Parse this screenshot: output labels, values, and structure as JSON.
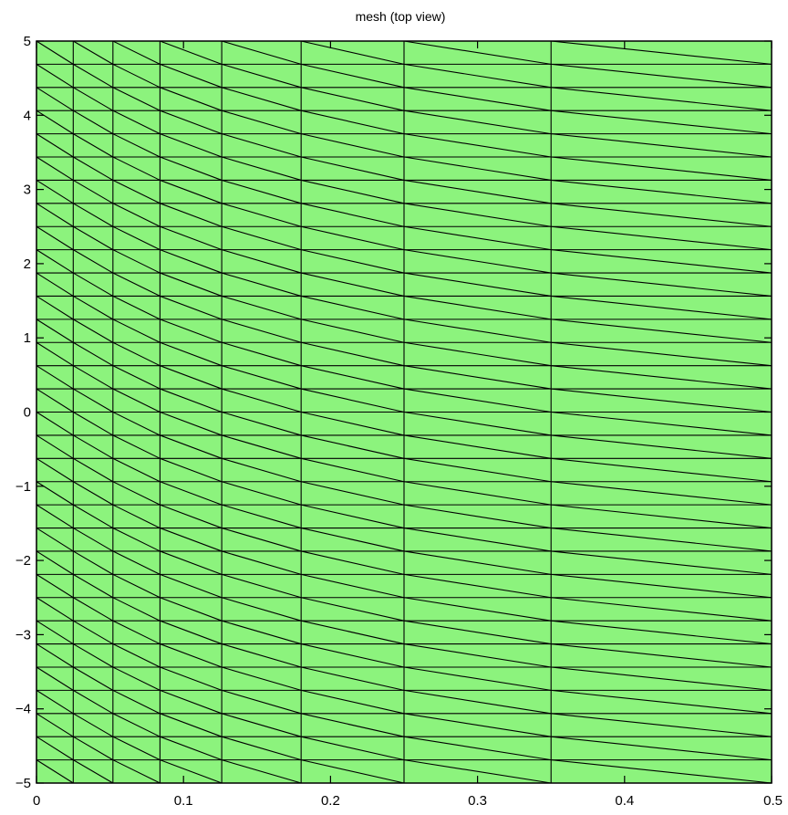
{
  "chart_data": {
    "type": "mesh",
    "title": "mesh (top view)",
    "xlabel": "",
    "ylabel": "",
    "xlim": [
      0,
      0.5
    ],
    "ylim": [
      -5,
      5
    ],
    "x_ticks": [
      0,
      0.1,
      0.2,
      0.3,
      0.4,
      0.5
    ],
    "x_tick_labels": [
      "0",
      "0.1",
      "0.2",
      "0.3",
      "0.4",
      "0.5"
    ],
    "y_ticks": [
      -5,
      -4,
      -3,
      -2,
      -1,
      0,
      1,
      2,
      3,
      4,
      5
    ],
    "y_tick_labels": [
      "−5",
      "−4",
      "−3",
      "−2",
      "−1",
      "0",
      "1",
      "2",
      "3",
      "4",
      "5"
    ],
    "mesh_x_nodes": [
      0,
      0.025,
      0.052,
      0.084,
      0.126,
      0.18,
      0.25,
      0.35,
      0.5
    ],
    "mesh_y_nodes": [
      -5,
      -4.688,
      -4.375,
      -4.063,
      -3.75,
      -3.438,
      -3.125,
      -2.813,
      -2.5,
      -2.188,
      -1.875,
      -1.563,
      -1.25,
      -0.938,
      -0.625,
      -0.313,
      0,
      0.313,
      0.625,
      0.938,
      1.25,
      1.563,
      1.875,
      2.188,
      2.5,
      2.813,
      3.125,
      3.438,
      3.75,
      4.063,
      4.375,
      4.688,
      5
    ],
    "fill_color": "#8cf37d",
    "edge_color": "#000000",
    "grid": false
  }
}
